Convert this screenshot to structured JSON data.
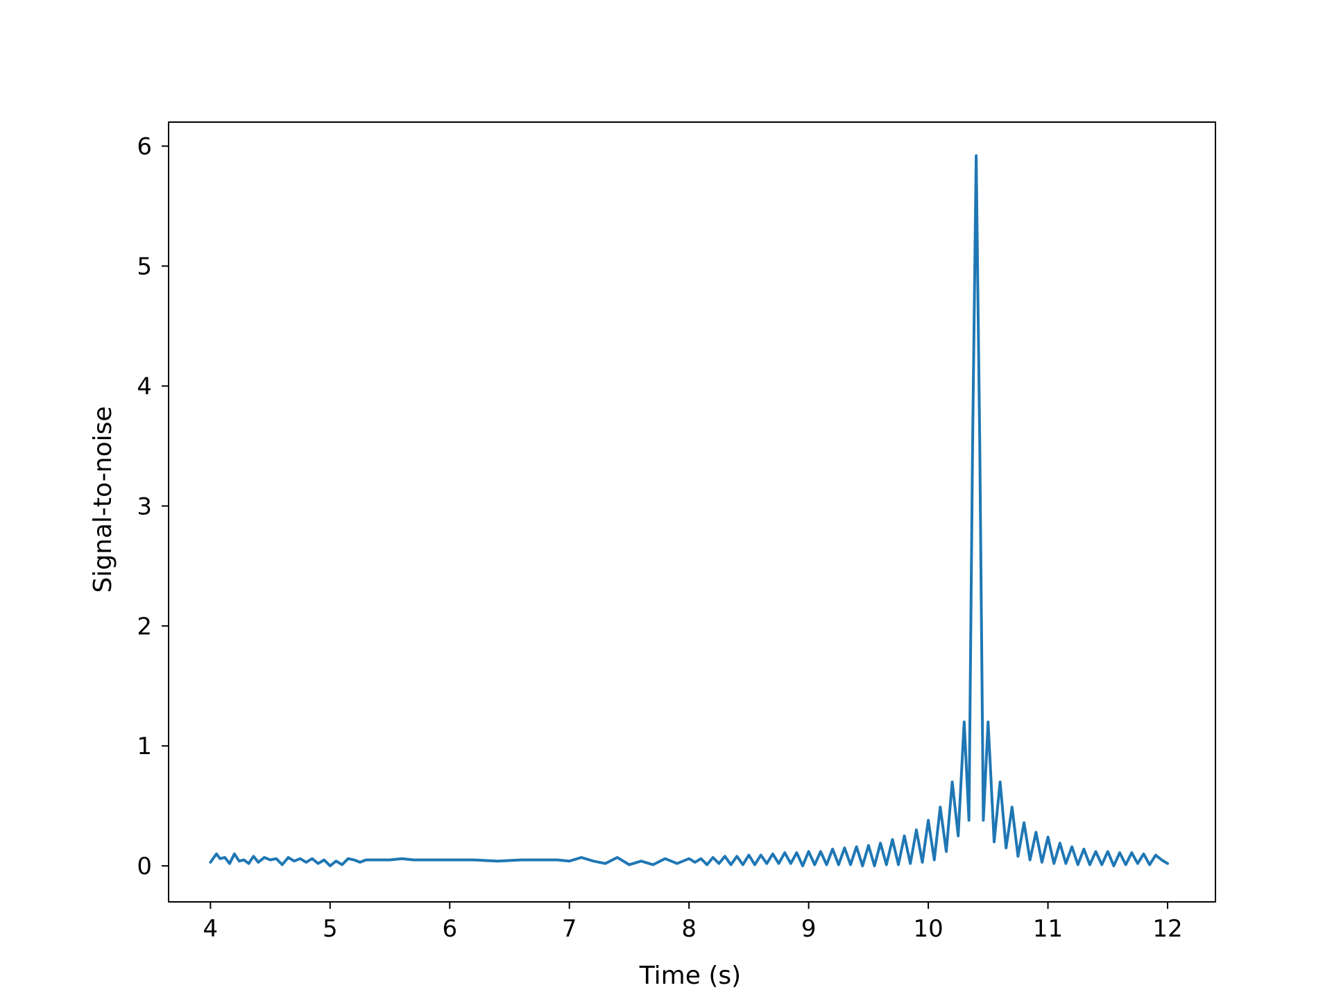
{
  "chart_data": {
    "type": "line",
    "title": "",
    "xlabel": "Time (s)",
    "ylabel": "Signal-to-noise",
    "xlim": [
      3.65,
      12.4
    ],
    "ylim": [
      -0.3,
      6.2
    ],
    "xticks": [
      4,
      5,
      6,
      7,
      8,
      9,
      10,
      11,
      12
    ],
    "yticks": [
      0,
      1,
      2,
      3,
      4,
      5,
      6
    ],
    "grid": false,
    "legend": "none",
    "colors": {
      "line": "#1f77b4",
      "axes": "#000000",
      "background": "#ffffff"
    },
    "series": [
      {
        "x": [
          4.0,
          4.05,
          4.08,
          4.12,
          4.16,
          4.2,
          4.24,
          4.28,
          4.32,
          4.36,
          4.4,
          4.45,
          4.5,
          4.55,
          4.6,
          4.65,
          4.7,
          4.75,
          4.8,
          4.85,
          4.9,
          4.95,
          5.0,
          5.05,
          5.1,
          5.15,
          5.2,
          5.25,
          5.3,
          5.35,
          5.4,
          5.5,
          5.6,
          5.7,
          5.8,
          5.9,
          6.0,
          6.2,
          6.4,
          6.6,
          6.8,
          6.9,
          7.0,
          7.1,
          7.2,
          7.3,
          7.4,
          7.5,
          7.6,
          7.7,
          7.8,
          7.9,
          8.0,
          8.05,
          8.1,
          8.15,
          8.2,
          8.25,
          8.3,
          8.35,
          8.4,
          8.45,
          8.5,
          8.55,
          8.6,
          8.65,
          8.7,
          8.75,
          8.8,
          8.85,
          8.9,
          8.95,
          9.0,
          9.05,
          9.1,
          9.15,
          9.2,
          9.25,
          9.3,
          9.35,
          9.4,
          9.45,
          9.5,
          9.55,
          9.6,
          9.65,
          9.7,
          9.75,
          9.8,
          9.85,
          9.9,
          9.95,
          10.0,
          10.05,
          10.1,
          10.15,
          10.2,
          10.25,
          10.3,
          10.34,
          10.37,
          10.4,
          10.43,
          10.46,
          10.5,
          10.55,
          10.6,
          10.65,
          10.7,
          10.75,
          10.8,
          10.85,
          10.9,
          10.95,
          11.0,
          11.05,
          11.1,
          11.15,
          11.2,
          11.25,
          11.3,
          11.35,
          11.4,
          11.45,
          11.5,
          11.55,
          11.6,
          11.65,
          11.7,
          11.75,
          11.8,
          11.85,
          11.9,
          11.95,
          12.0
        ],
        "values": [
          0.03,
          0.1,
          0.06,
          0.07,
          0.02,
          0.1,
          0.04,
          0.05,
          0.02,
          0.08,
          0.03,
          0.07,
          0.05,
          0.06,
          0.01,
          0.07,
          0.04,
          0.06,
          0.03,
          0.06,
          0.02,
          0.05,
          0.0,
          0.04,
          0.01,
          0.06,
          0.05,
          0.03,
          0.05,
          0.05,
          0.05,
          0.05,
          0.06,
          0.05,
          0.05,
          0.05,
          0.05,
          0.05,
          0.04,
          0.05,
          0.05,
          0.05,
          0.04,
          0.07,
          0.04,
          0.02,
          0.07,
          0.01,
          0.04,
          0.01,
          0.06,
          0.02,
          0.06,
          0.03,
          0.06,
          0.01,
          0.07,
          0.02,
          0.08,
          0.01,
          0.08,
          0.01,
          0.09,
          0.01,
          0.09,
          0.02,
          0.1,
          0.02,
          0.11,
          0.02,
          0.11,
          0.0,
          0.12,
          0.01,
          0.12,
          0.01,
          0.14,
          0.01,
          0.15,
          0.01,
          0.16,
          0.0,
          0.17,
          0.0,
          0.19,
          0.01,
          0.22,
          0.01,
          0.25,
          0.02,
          0.3,
          0.03,
          0.38,
          0.05,
          0.49,
          0.12,
          0.7,
          0.25,
          1.2,
          0.38,
          3.5,
          5.92,
          3.5,
          0.38,
          1.2,
          0.2,
          0.7,
          0.15,
          0.49,
          0.08,
          0.36,
          0.05,
          0.28,
          0.03,
          0.24,
          0.02,
          0.19,
          0.02,
          0.16,
          0.01,
          0.14,
          0.01,
          0.12,
          0.01,
          0.12,
          0.0,
          0.11,
          0.01,
          0.11,
          0.02,
          0.1,
          0.01,
          0.09,
          0.05,
          0.02
        ]
      }
    ]
  }
}
